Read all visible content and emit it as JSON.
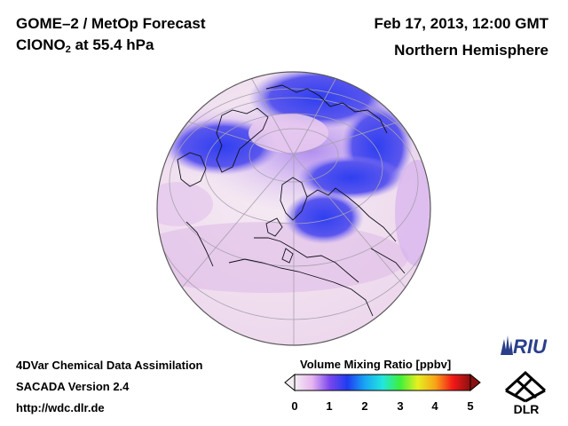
{
  "header": {
    "title": "GOME–2 / MetOp Forecast",
    "species_main": "ClONO",
    "species_sub": "2",
    "species_level": " at 55.4 hPa",
    "datetime": "Feb 17, 2013, 12:00 GMT",
    "region": "Northern Hemisphere"
  },
  "footer": {
    "line1": "4DVar Chemical Data Assimilation",
    "line2": "SACADA Version 2.4",
    "url": "http://wdc.dlr.de"
  },
  "colorbar": {
    "title": "Volume Mixing Ratio [ppbv]",
    "min": 0,
    "max": 5,
    "ticks": [
      "0",
      "1",
      "2",
      "3",
      "4",
      "5"
    ],
    "colors": [
      "#f4eef2",
      "#e6b4f0",
      "#7a46ee",
      "#1f3cf0",
      "#18a6f4",
      "#22e6de",
      "#3ef03a",
      "#e6f020",
      "#f8a418",
      "#f41818",
      "#8a1010"
    ]
  },
  "map": {
    "projection": "orthographic",
    "view": "Northern Hemisphere",
    "ocean_background": "#f3e4f0",
    "high_value_color": "#3a52ee"
  },
  "logos": {
    "riu": "RIU",
    "dlr": "DLR"
  }
}
